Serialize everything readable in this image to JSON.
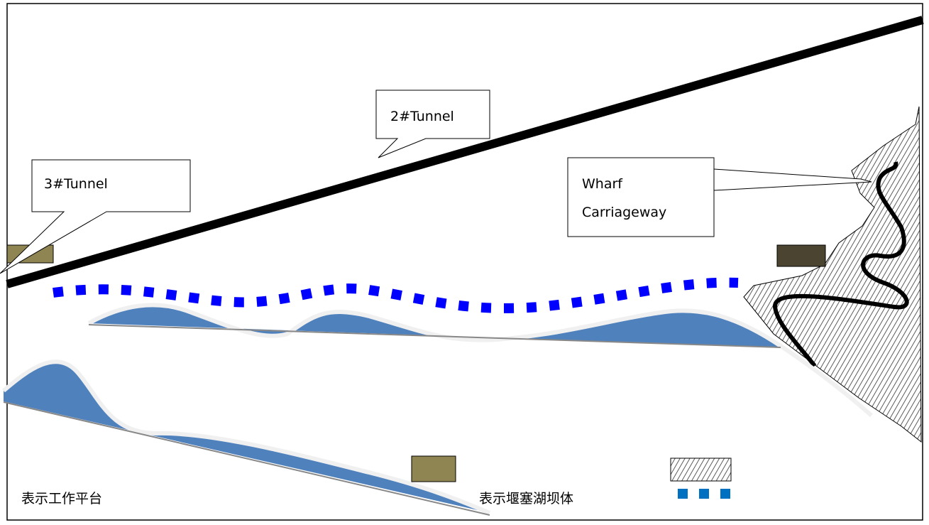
{
  "callouts": [
    {
      "label": "2#Tunnel"
    },
    {
      "label": "3#Tunnel"
    },
    {
      "lines": [
        "Wharf",
        "Carriageway"
      ]
    }
  ],
  "legend": [
    {
      "label": "表示工作平台"
    },
    {
      "label": "表示堰塞湖坝体"
    }
  ]
}
